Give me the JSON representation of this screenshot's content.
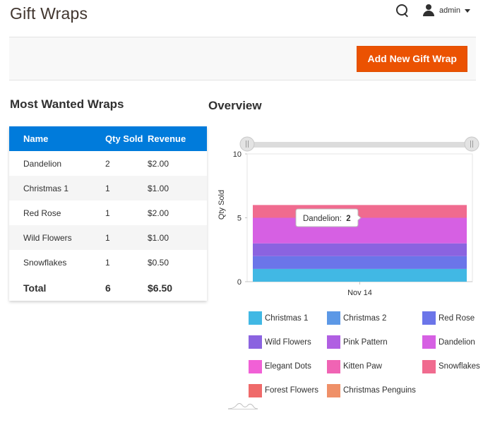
{
  "page": {
    "title": "Gift Wraps"
  },
  "header": {
    "account_name": "admin",
    "search_icon": "search-icon",
    "user_icon": "user-icon"
  },
  "actions": {
    "add_label": "Add New Gift Wrap",
    "accent": "#eb5202"
  },
  "most_wanted": {
    "title": "Most Wanted Wraps",
    "columns": [
      "Name",
      "Qty Sold",
      "Revenue"
    ],
    "rows": [
      [
        "Dandelion",
        "2",
        "$2.00"
      ],
      [
        "Christmas 1",
        "1",
        "$1.00"
      ],
      [
        "Red Rose",
        "1",
        "$2.00"
      ],
      [
        "Wild Flowers",
        "1",
        "$1.00"
      ],
      [
        "Snowflakes",
        "1",
        "$0.50"
      ]
    ],
    "total": [
      "Total",
      "6",
      "$6.50"
    ],
    "header_color": "#007bdb"
  },
  "overview": {
    "title": "Overview",
    "tooltip": {
      "label": "Dandelion:",
      "value": "2"
    }
  },
  "chart_data": {
    "type": "area",
    "stacked": true,
    "title": "Overview",
    "xlabel": "",
    "ylabel": "Qty Sold",
    "x": [
      "Nov 14"
    ],
    "ylim": [
      0,
      10
    ],
    "yticks": [
      "0",
      "5",
      "10"
    ],
    "grid": false,
    "legend_position": "bottom",
    "series": [
      {
        "name": "Christmas 1",
        "color": "#41b8e4",
        "values": [
          1
        ]
      },
      {
        "name": "Christmas 2",
        "color": "#5c98e6",
        "values": [
          0
        ]
      },
      {
        "name": "Red Rose",
        "color": "#6b75e9",
        "values": [
          1
        ]
      },
      {
        "name": "Wild Flowers",
        "color": "#8b63e0",
        "values": [
          1
        ]
      },
      {
        "name": "Pink Pattern",
        "color": "#b05fe2",
        "values": [
          0
        ]
      },
      {
        "name": "Dandelion",
        "color": "#d660e3",
        "values": [
          2
        ]
      },
      {
        "name": "Elegant Dots",
        "color": "#f160d6",
        "values": [
          0
        ]
      },
      {
        "name": "Kitten Paw",
        "color": "#f064b4",
        "values": [
          0
        ]
      },
      {
        "name": "Snowflakes",
        "color": "#f06b8f",
        "values": [
          1
        ]
      },
      {
        "name": "Forest Flowers",
        "color": "#ef6a6a",
        "values": [
          0
        ]
      },
      {
        "name": "Christmas Penguins",
        "color": "#ef9068",
        "values": [
          0
        ]
      }
    ]
  }
}
